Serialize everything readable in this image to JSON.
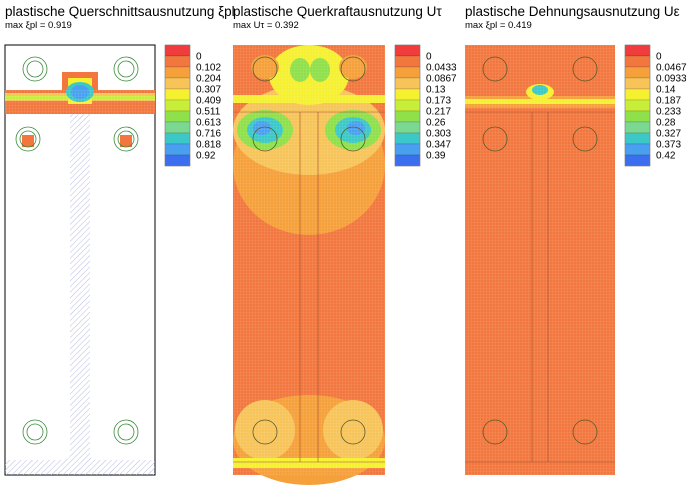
{
  "colors": [
    "#f03c3c",
    "#f2773e",
    "#f5a03a",
    "#f7c45a",
    "#f5f030",
    "#c8ee3a",
    "#8fe04a",
    "#7ad890",
    "#3cc8c8",
    "#4aa0f0",
    "#3c6ef0"
  ],
  "chart_data": [
    {
      "type": "heatmap",
      "title": "plastische Querschnittsausnutzung ξpl",
      "subtitle": "max ξpl = 0.919",
      "max": 0.919,
      "legend": [
        "0",
        "0.102",
        "0.204",
        "0.307",
        "0.409",
        "0.511",
        "0.613",
        "0.716",
        "0.818",
        "0.92"
      ]
    },
    {
      "type": "heatmap",
      "title": "plastische Querkraftausnutzung Uτ",
      "subtitle": "max Uτ = 0.392",
      "max": 0.392,
      "legend": [
        "0",
        "0.0433",
        "0.0867",
        "0.13",
        "0.173",
        "0.217",
        "0.26",
        "0.303",
        "0.347",
        "0.39"
      ]
    },
    {
      "type": "heatmap",
      "title": "plastische Dehnungsausnutzung Uε",
      "subtitle": "max ξpl = 0.419",
      "max": 0.419,
      "legend": [
        "0",
        "0.0467",
        "0.0933",
        "0.14",
        "0.187",
        "0.233",
        "0.28",
        "0.327",
        "0.373",
        "0.42"
      ]
    }
  ]
}
